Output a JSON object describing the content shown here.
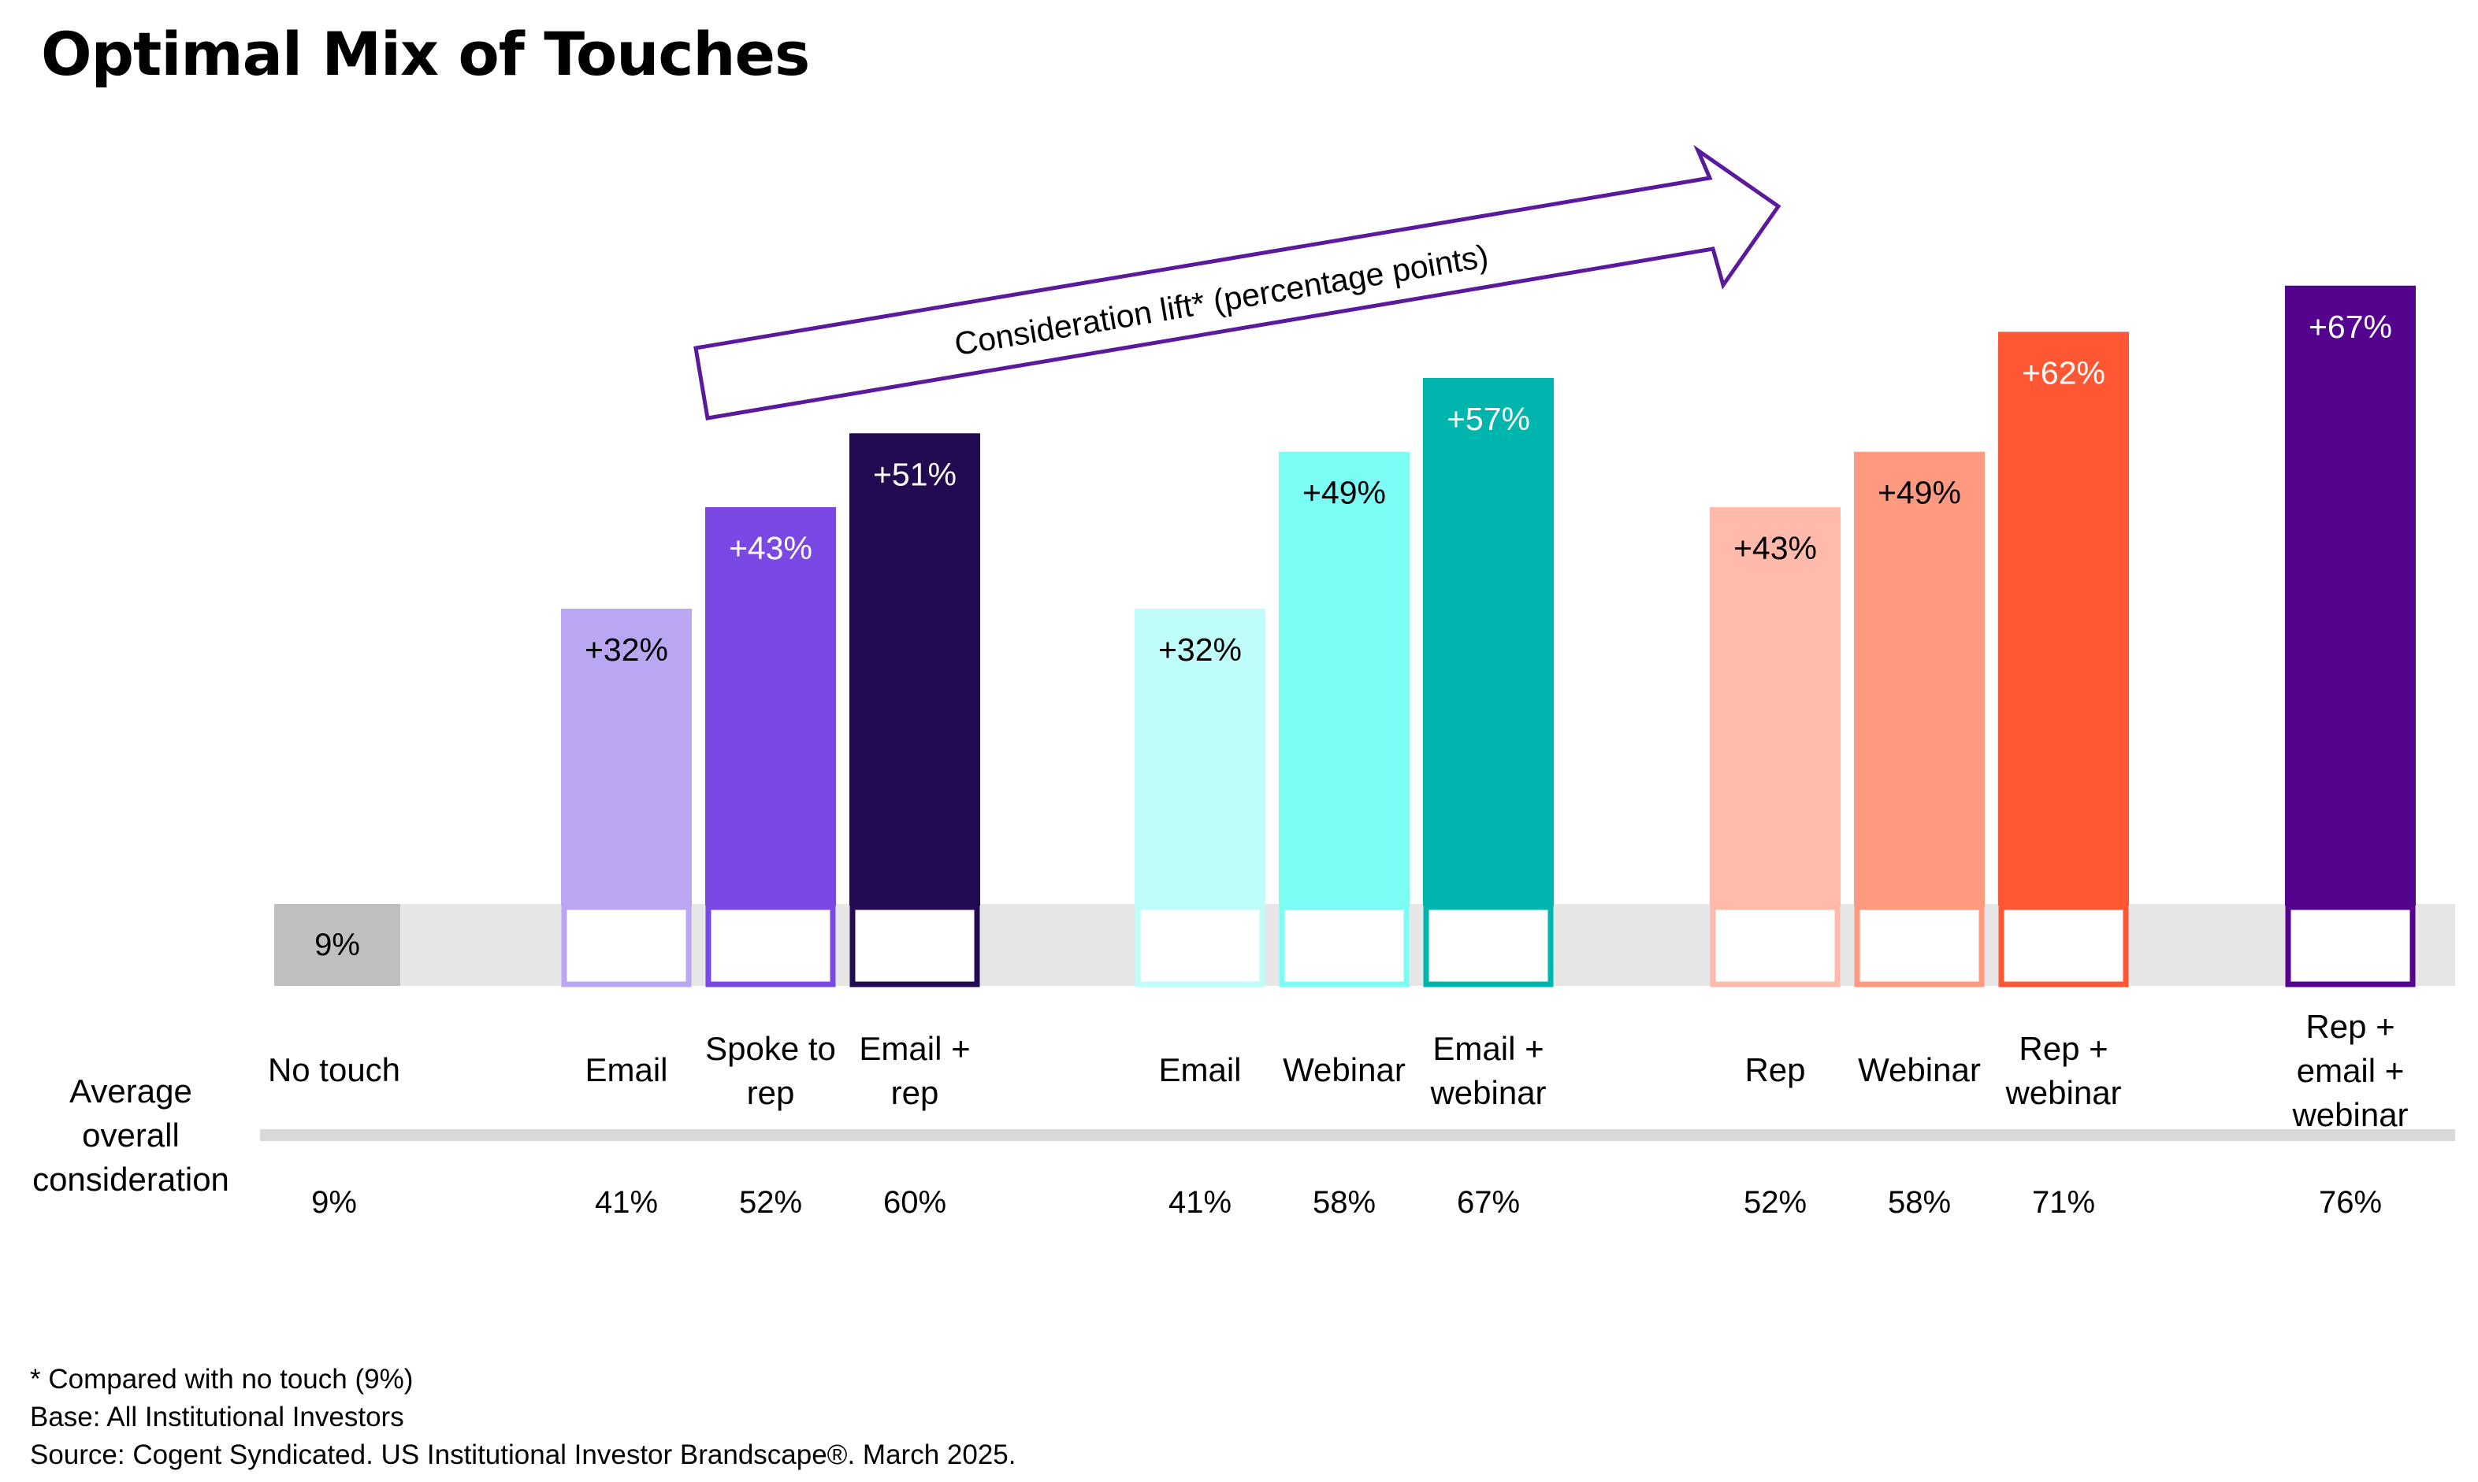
{
  "title": "Optimal Mix of Touches",
  "chart_data": {
    "type": "bar",
    "annotation": "Consideration lift* (percentage points)",
    "row_label": "Average overall consideration",
    "baseline": {
      "label": "No touch",
      "value_label": "9%",
      "consideration": "9%",
      "value": 9
    },
    "groups": [
      {
        "bars": [
          {
            "category": "Email",
            "lift": 32,
            "lift_label": "+32%",
            "consideration": "41%",
            "color": "#BBA6F4",
            "text_color": "#000000"
          },
          {
            "category": "Spoke to rep",
            "lift": 43,
            "lift_label": "+43%",
            "consideration": "52%",
            "color": "#7A48E5",
            "text_color": "#FFFFFF"
          },
          {
            "category": "Email + rep",
            "lift": 51,
            "lift_label": "+51%",
            "consideration": "60%",
            "color": "#230B52",
            "text_color": "#FFFFFF"
          }
        ]
      },
      {
        "bars": [
          {
            "category": "Email",
            "lift": 32,
            "lift_label": "+32%",
            "consideration": "41%",
            "color": "#BFFDFB",
            "text_color": "#000000"
          },
          {
            "category": "Webinar",
            "lift": 49,
            "lift_label": "+49%",
            "consideration": "58%",
            "color": "#7BFDF6",
            "text_color": "#000000"
          },
          {
            "category": "Email + webinar",
            "lift": 57,
            "lift_label": "+57%",
            "consideration": "67%",
            "color": "#00B5AE",
            "text_color": "#FFFFFF"
          }
        ]
      },
      {
        "bars": [
          {
            "category": "Rep",
            "lift": 43,
            "lift_label": "+43%",
            "consideration": "52%",
            "color": "#FFBAAC",
            "text_color": "#000000"
          },
          {
            "category": "Webinar",
            "lift": 49,
            "lift_label": "+49%",
            "consideration": "58%",
            "color": "#FF9A80",
            "text_color": "#000000"
          },
          {
            "category": "Rep + webinar",
            "lift": 62,
            "lift_label": "+62%",
            "consideration": "71%",
            "color": "#FF5733",
            "text_color": "#FFFFFF"
          }
        ]
      },
      {
        "bars": [
          {
            "category": "Rep + email + webinar",
            "lift": 67,
            "lift_label": "+67%",
            "consideration": "76%",
            "color": "#54038F",
            "text_color": "#FFFFFF"
          }
        ]
      }
    ],
    "colors": {
      "baseline_band": "#E6E6E6",
      "baseline_box": "#BFBFBF",
      "divider": "#D9D9D9",
      "arrow": "#5A1A9C"
    }
  },
  "footnotes": [
    "* Compared with no touch (9%)",
    "Base: All Institutional Investors",
    "Source: Cogent Syndicated. US Institutional Investor Brandscape®. March 2025."
  ]
}
